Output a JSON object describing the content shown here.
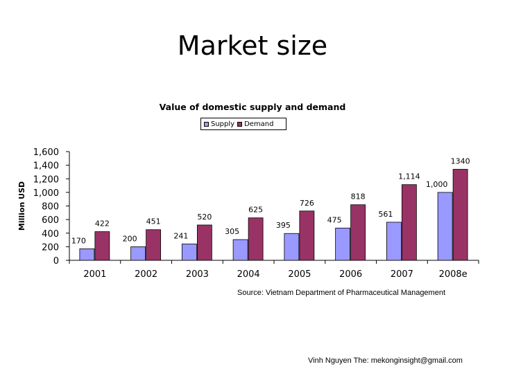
{
  "slide": {
    "title": "Market size",
    "source": "Source: Vietnam Department of Pharmaceutical Management",
    "footer": "Vinh Nguyen The: mekonginsight@gmail.com"
  },
  "chart_data": {
    "type": "bar",
    "title": "Value of domestic supply and demand",
    "xlabel": "",
    "ylabel": "Million USD",
    "ylim": [
      0,
      1600
    ],
    "yticks": [
      0,
      200,
      400,
      600,
      800,
      1000,
      1200,
      1400,
      1600
    ],
    "ytick_labels": [
      "0",
      "200",
      "400",
      "600",
      "800",
      "1,000",
      "1,200",
      "1,400",
      "1,600"
    ],
    "categories": [
      "2001",
      "2002",
      "2003",
      "2004",
      "2005",
      "2006",
      "2007",
      "2008e"
    ],
    "series": [
      {
        "name": "Supply",
        "color": "#9999ff",
        "values": [
          170,
          200,
          241,
          305,
          395,
          475,
          561,
          1000
        ],
        "labels": [
          "170",
          "200",
          "241",
          "305",
          "395",
          "475",
          "561",
          "1,000"
        ]
      },
      {
        "name": "Demand",
        "color": "#993366",
        "values": [
          422,
          451,
          520,
          625,
          726,
          818,
          1114,
          1340
        ],
        "labels": [
          "422",
          "451",
          "520",
          "625",
          "726",
          "818",
          "1,114",
          "1340"
        ]
      }
    ],
    "grid": false,
    "legend_position": "top"
  }
}
